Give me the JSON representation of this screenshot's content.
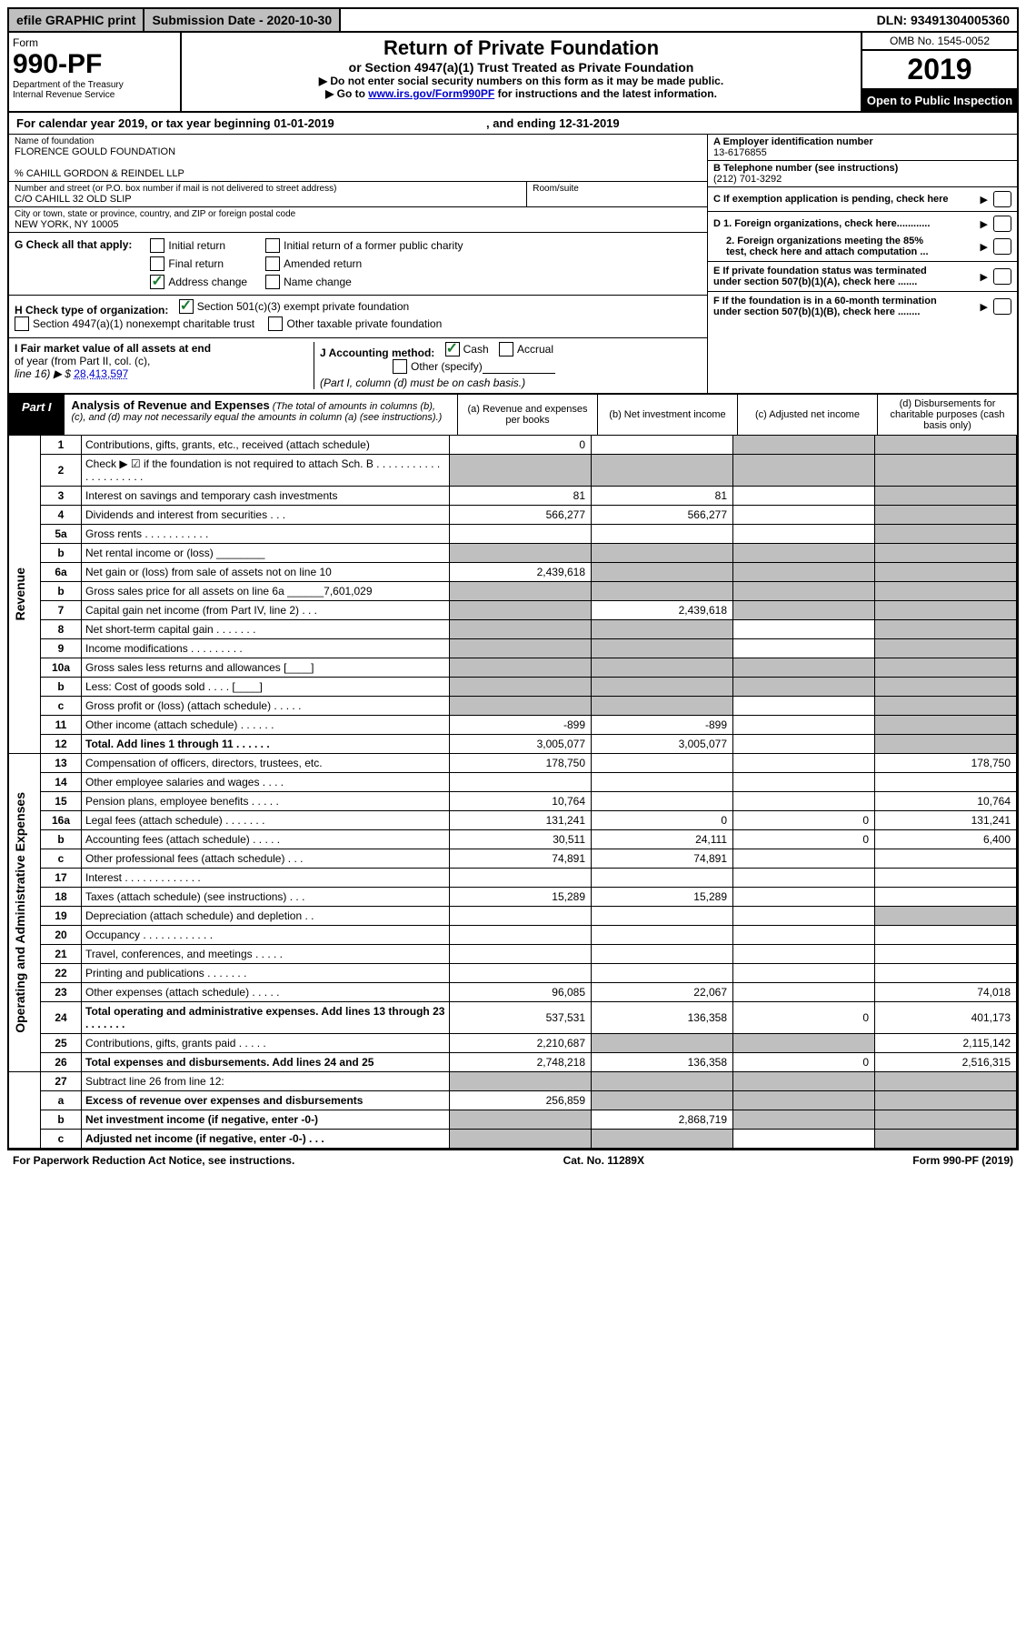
{
  "top": {
    "efile": "efile GRAPHIC print",
    "sub_date_lbl": "Submission Date - 2020-10-30",
    "dln": "DLN: 93491304005360"
  },
  "header": {
    "form_word": "Form",
    "form_no": "990-PF",
    "dept1": "Department of the Treasury",
    "dept2": "Internal Revenue Service",
    "title": "Return of Private Foundation",
    "subtitle": "or Section 4947(a)(1) Trust Treated as Private Foundation",
    "note1": "▶ Do not enter social security numbers on this form as it may be made public.",
    "note2_pre": "▶ Go to ",
    "note2_link": "www.irs.gov/Form990PF",
    "note2_post": " for instructions and the latest information.",
    "omb": "OMB No. 1545-0052",
    "year": "2019",
    "inspect": "Open to Public Inspection"
  },
  "cal": {
    "line": "For calendar year 2019, or tax year beginning 01-01-2019",
    "end": ", and ending 12-31-2019"
  },
  "info": {
    "name_lbl": "Name of foundation",
    "name": "FLORENCE GOULD FOUNDATION",
    "care": "% CAHILL GORDON & REINDEL LLP",
    "addr_lbl": "Number and street (or P.O. box number if mail is not delivered to street address)",
    "addr": "C/O CAHILL 32 OLD SLIP",
    "room_lbl": "Room/suite",
    "city_lbl": "City or town, state or province, country, and ZIP or foreign postal code",
    "city": "NEW YORK, NY  10005",
    "ein_lbl": "A Employer identification number",
    "ein": "13-6176855",
    "tel_lbl": "B Telephone number (see instructions)",
    "tel": "(212) 701-3292",
    "c_lbl": "C If exemption application is pending, check here"
  },
  "G": {
    "lbl": "G Check all that apply:",
    "initial": "Initial return",
    "final": "Final return",
    "address": "Address change",
    "initial_former": "Initial return of a former public charity",
    "amended": "Amended return",
    "name_change": "Name change"
  },
  "H": {
    "lbl": "H Check type of organization:",
    "s501": "Section 501(c)(3) exempt private foundation",
    "s4947": "Section 4947(a)(1) nonexempt charitable trust",
    "other": "Other taxable private foundation"
  },
  "I": {
    "lbl1": "I Fair market value of all assets at end",
    "lbl2": "of year (from Part II, col. (c),",
    "lbl3": "line 16) ▶ $",
    "val": "28,413,597"
  },
  "J": {
    "lbl": "J Accounting method:",
    "cash": "Cash",
    "accrual": "Accrual",
    "other": "Other (specify)",
    "note": "(Part I, column (d) must be on cash basis.)"
  },
  "D": {
    "d1": "D 1. Foreign organizations, check here............",
    "d2a": "2. Foreign organizations meeting the 85%",
    "d2b": "test, check here and attach computation ..."
  },
  "E": {
    "e1": "E  If private foundation status was terminated",
    "e2": "under section 507(b)(1)(A), check here ......."
  },
  "F": {
    "f1": "F  If the foundation is in a 60-month termination",
    "f2": "under section 507(b)(1)(B), check here ........"
  },
  "part": {
    "lbl": "Part I",
    "title": "Analysis of Revenue and Expenses",
    "note": "(The total of amounts in columns (b), (c), and (d) may not necessarily equal the amounts in column (a) (see instructions).)",
    "col_a": "(a)   Revenue and expenses per books",
    "col_b": "(b)  Net investment income",
    "col_c": "(c)  Adjusted net income",
    "col_d": "(d)  Disbursements for charitable purposes (cash basis only)"
  },
  "side": {
    "revenue": "Revenue",
    "expenses": "Operating and Administrative Expenses"
  },
  "rows": [
    {
      "n": "1",
      "d": "Contributions, gifts, grants, etc., received (attach schedule)",
      "a": "0",
      "b": "",
      "c": "grey",
      "dd": "grey"
    },
    {
      "n": "2",
      "d": "Check ▶ ☑ if the foundation is not required to attach Sch. B . . . . . . . . . . . . . . . . . . . . .",
      "a": "grey",
      "b": "grey",
      "c": "grey",
      "dd": "grey"
    },
    {
      "n": "3",
      "d": "Interest on savings and temporary cash investments",
      "a": "81",
      "b": "81",
      "c": "",
      "dd": "grey"
    },
    {
      "n": "4",
      "d": "Dividends and interest from securities  . . .",
      "a": "566,277",
      "b": "566,277",
      "c": "",
      "dd": "grey"
    },
    {
      "n": "5a",
      "d": "Gross rents  . . . . . . . . . . .",
      "a": "",
      "b": "",
      "c": "",
      "dd": "grey"
    },
    {
      "n": "b",
      "d": "Net rental income or (loss)  ________",
      "a": "grey",
      "b": "grey",
      "c": "grey",
      "dd": "grey"
    },
    {
      "n": "6a",
      "d": "Net gain or (loss) from sale of assets not on line 10",
      "a": "2,439,618",
      "b": "grey",
      "c": "grey",
      "dd": "grey"
    },
    {
      "n": "b",
      "d": "Gross sales price for all assets on line 6a ______7,601,029",
      "a": "grey",
      "b": "grey",
      "c": "grey",
      "dd": "grey"
    },
    {
      "n": "7",
      "d": "Capital gain net income (from Part IV, line 2)  . . .",
      "a": "grey",
      "b": "2,439,618",
      "c": "grey",
      "dd": "grey"
    },
    {
      "n": "8",
      "d": "Net short-term capital gain  . . . . . . .",
      "a": "grey",
      "b": "grey",
      "c": "",
      "dd": "grey"
    },
    {
      "n": "9",
      "d": "Income modifications  . . . . . . . . .",
      "a": "grey",
      "b": "grey",
      "c": "",
      "dd": "grey"
    },
    {
      "n": "10a",
      "d": "Gross sales less returns and allowances  [____]",
      "a": "grey",
      "b": "grey",
      "c": "grey",
      "dd": "grey"
    },
    {
      "n": "b",
      "d": "Less: Cost of goods sold   . . . .  [____]",
      "a": "grey",
      "b": "grey",
      "c": "grey",
      "dd": "grey"
    },
    {
      "n": "c",
      "d": "Gross profit or (loss) (attach schedule)  . . . . .",
      "a": "grey",
      "b": "grey",
      "c": "",
      "dd": "grey"
    },
    {
      "n": "11",
      "d": "Other income (attach schedule)  . . . . . .",
      "a": "-899",
      "b": "-899",
      "c": "",
      "dd": "grey"
    },
    {
      "n": "12",
      "d": "Total. Add lines 1 through 11  . . . . . .",
      "a": "3,005,077",
      "b": "3,005,077",
      "c": "",
      "dd": "grey",
      "bold": true
    }
  ],
  "rows2": [
    {
      "n": "13",
      "d": "Compensation of officers, directors, trustees, etc.",
      "a": "178,750",
      "b": "",
      "c": "",
      "dd": "178,750"
    },
    {
      "n": "14",
      "d": "Other employee salaries and wages  . . . .",
      "a": "",
      "b": "",
      "c": "",
      "dd": ""
    },
    {
      "n": "15",
      "d": "Pension plans, employee benefits  . . . . .",
      "a": "10,764",
      "b": "",
      "c": "",
      "dd": "10,764"
    },
    {
      "n": "16a",
      "d": "Legal fees (attach schedule) . . . . . . .",
      "a": "131,241",
      "b": "0",
      "c": "0",
      "dd": "131,241"
    },
    {
      "n": "b",
      "d": "Accounting fees (attach schedule)  . . . . .",
      "a": "30,511",
      "b": "24,111",
      "c": "0",
      "dd": "6,400"
    },
    {
      "n": "c",
      "d": "Other professional fees (attach schedule)   . . .",
      "a": "74,891",
      "b": "74,891",
      "c": "",
      "dd": ""
    },
    {
      "n": "17",
      "d": "Interest  . . . . . . . . . . . . .",
      "a": "",
      "b": "",
      "c": "",
      "dd": ""
    },
    {
      "n": "18",
      "d": "Taxes (attach schedule) (see instructions)  . . .",
      "a": "15,289",
      "b": "15,289",
      "c": "",
      "dd": ""
    },
    {
      "n": "19",
      "d": "Depreciation (attach schedule) and depletion   . .",
      "a": "",
      "b": "",
      "c": "",
      "dd": "grey"
    },
    {
      "n": "20",
      "d": "Occupancy  . . . . . . . . . . . .",
      "a": "",
      "b": "",
      "c": "",
      "dd": ""
    },
    {
      "n": "21",
      "d": "Travel, conferences, and meetings  . . . . .",
      "a": "",
      "b": "",
      "c": "",
      "dd": ""
    },
    {
      "n": "22",
      "d": "Printing and publications  . . . . . . .",
      "a": "",
      "b": "",
      "c": "",
      "dd": ""
    },
    {
      "n": "23",
      "d": "Other expenses (attach schedule)  . . . . .",
      "a": "96,085",
      "b": "22,067",
      "c": "",
      "dd": "74,018"
    },
    {
      "n": "24",
      "d": "Total operating and administrative expenses. Add lines 13 through 23  . . . . . . .",
      "a": "537,531",
      "b": "136,358",
      "c": "0",
      "dd": "401,173",
      "bold": true
    },
    {
      "n": "25",
      "d": "Contributions, gifts, grants paid  . . . . .",
      "a": "2,210,687",
      "b": "grey",
      "c": "grey",
      "dd": "2,115,142"
    },
    {
      "n": "26",
      "d": "Total expenses and disbursements. Add lines 24 and 25",
      "a": "2,748,218",
      "b": "136,358",
      "c": "0",
      "dd": "2,516,315",
      "bold": true
    }
  ],
  "rows3": [
    {
      "n": "27",
      "d": "Subtract line 26 from line 12:",
      "a": "grey",
      "b": "grey",
      "c": "grey",
      "dd": "grey"
    },
    {
      "n": "a",
      "d": "Excess of revenue over expenses and disbursements",
      "a": "256,859",
      "b": "grey",
      "c": "grey",
      "dd": "grey",
      "bold": true
    },
    {
      "n": "b",
      "d": "Net investment income (if negative, enter -0-)",
      "a": "grey",
      "b": "2,868,719",
      "c": "grey",
      "dd": "grey",
      "bold": true
    },
    {
      "n": "c",
      "d": "Adjusted net income (if negative, enter -0-)   . . .",
      "a": "grey",
      "b": "grey",
      "c": "",
      "dd": "grey",
      "bold": true
    }
  ],
  "footer": {
    "left": "For Paperwork Reduction Act Notice, see instructions.",
    "mid": "Cat. No. 11289X",
    "right": "Form 990-PF (2019)"
  }
}
